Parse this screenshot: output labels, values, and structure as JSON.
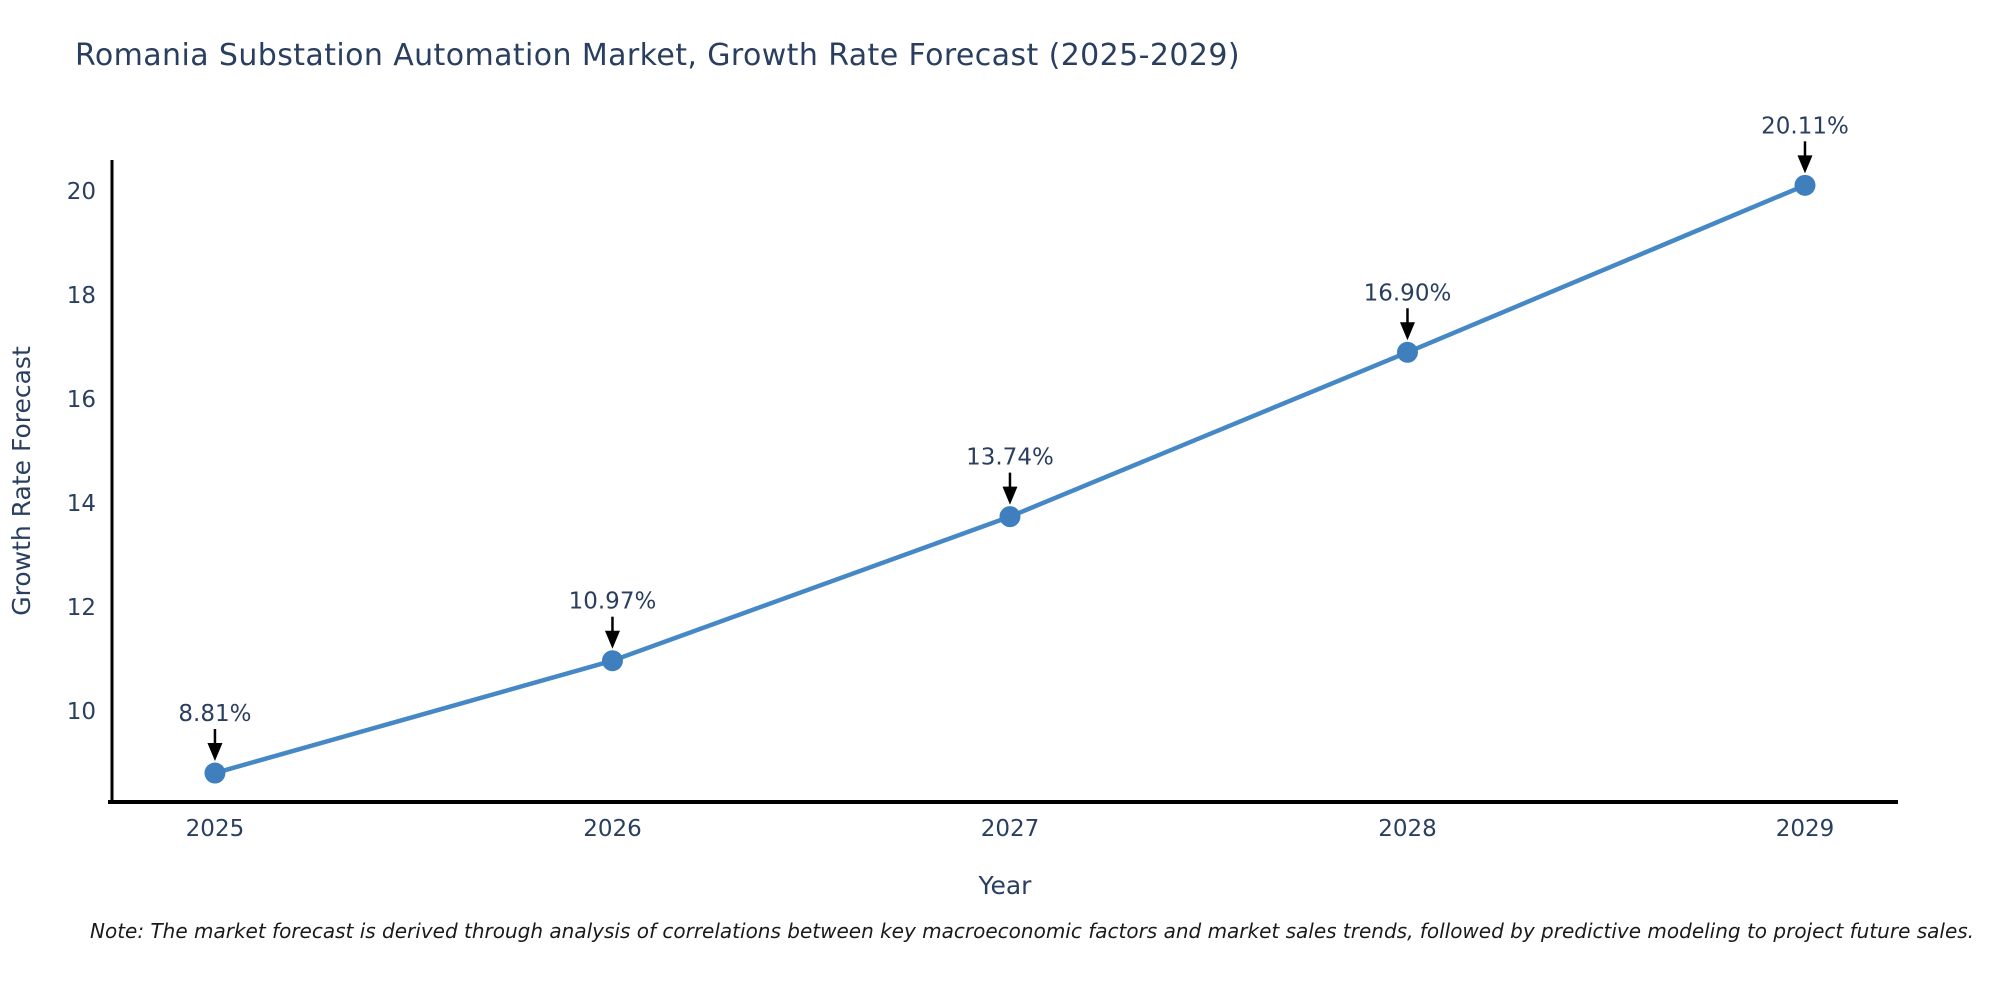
{
  "title": "Romania Substation Automation Market, Growth Rate Forecast (2025-2029)",
  "note": "Note: The market forecast is derived through analysis of correlations between key macroeconomic factors and market sales trends, followed by predictive modeling to project future sales.",
  "colors": {
    "background": "#ffffff",
    "title_text": "#2a3f5f",
    "axis_text": "#2a3f5f",
    "annotation_text": "#2a3f5f",
    "axis_line": "#000000",
    "arrow": "#000000",
    "line": "#4588c5",
    "marker": "#3f7fbe"
  },
  "chart_data": {
    "type": "line",
    "title": "Romania Substation Automation Market, Growth Rate Forecast (2025-2029)",
    "xlabel": "Year",
    "ylabel": "Growth Rate Forecast",
    "x": [
      2025,
      2026,
      2027,
      2028,
      2029
    ],
    "values": [
      8.81,
      10.97,
      13.74,
      16.9,
      20.11
    ],
    "point_labels": [
      "8.81%",
      "10.97%",
      "13.74%",
      "16.90%",
      "20.11%"
    ],
    "xtick_labels": [
      "2025",
      "2026",
      "2027",
      "2028",
      "2029"
    ],
    "ytick_values": [
      10,
      12,
      14,
      16,
      18,
      20
    ],
    "xlim": [
      2024.741,
      2029.234
    ],
    "ylim": [
      8.253,
      20.597
    ],
    "grid": false,
    "legend": null,
    "annotations_have_arrows": true,
    "marker_style": "circle"
  }
}
